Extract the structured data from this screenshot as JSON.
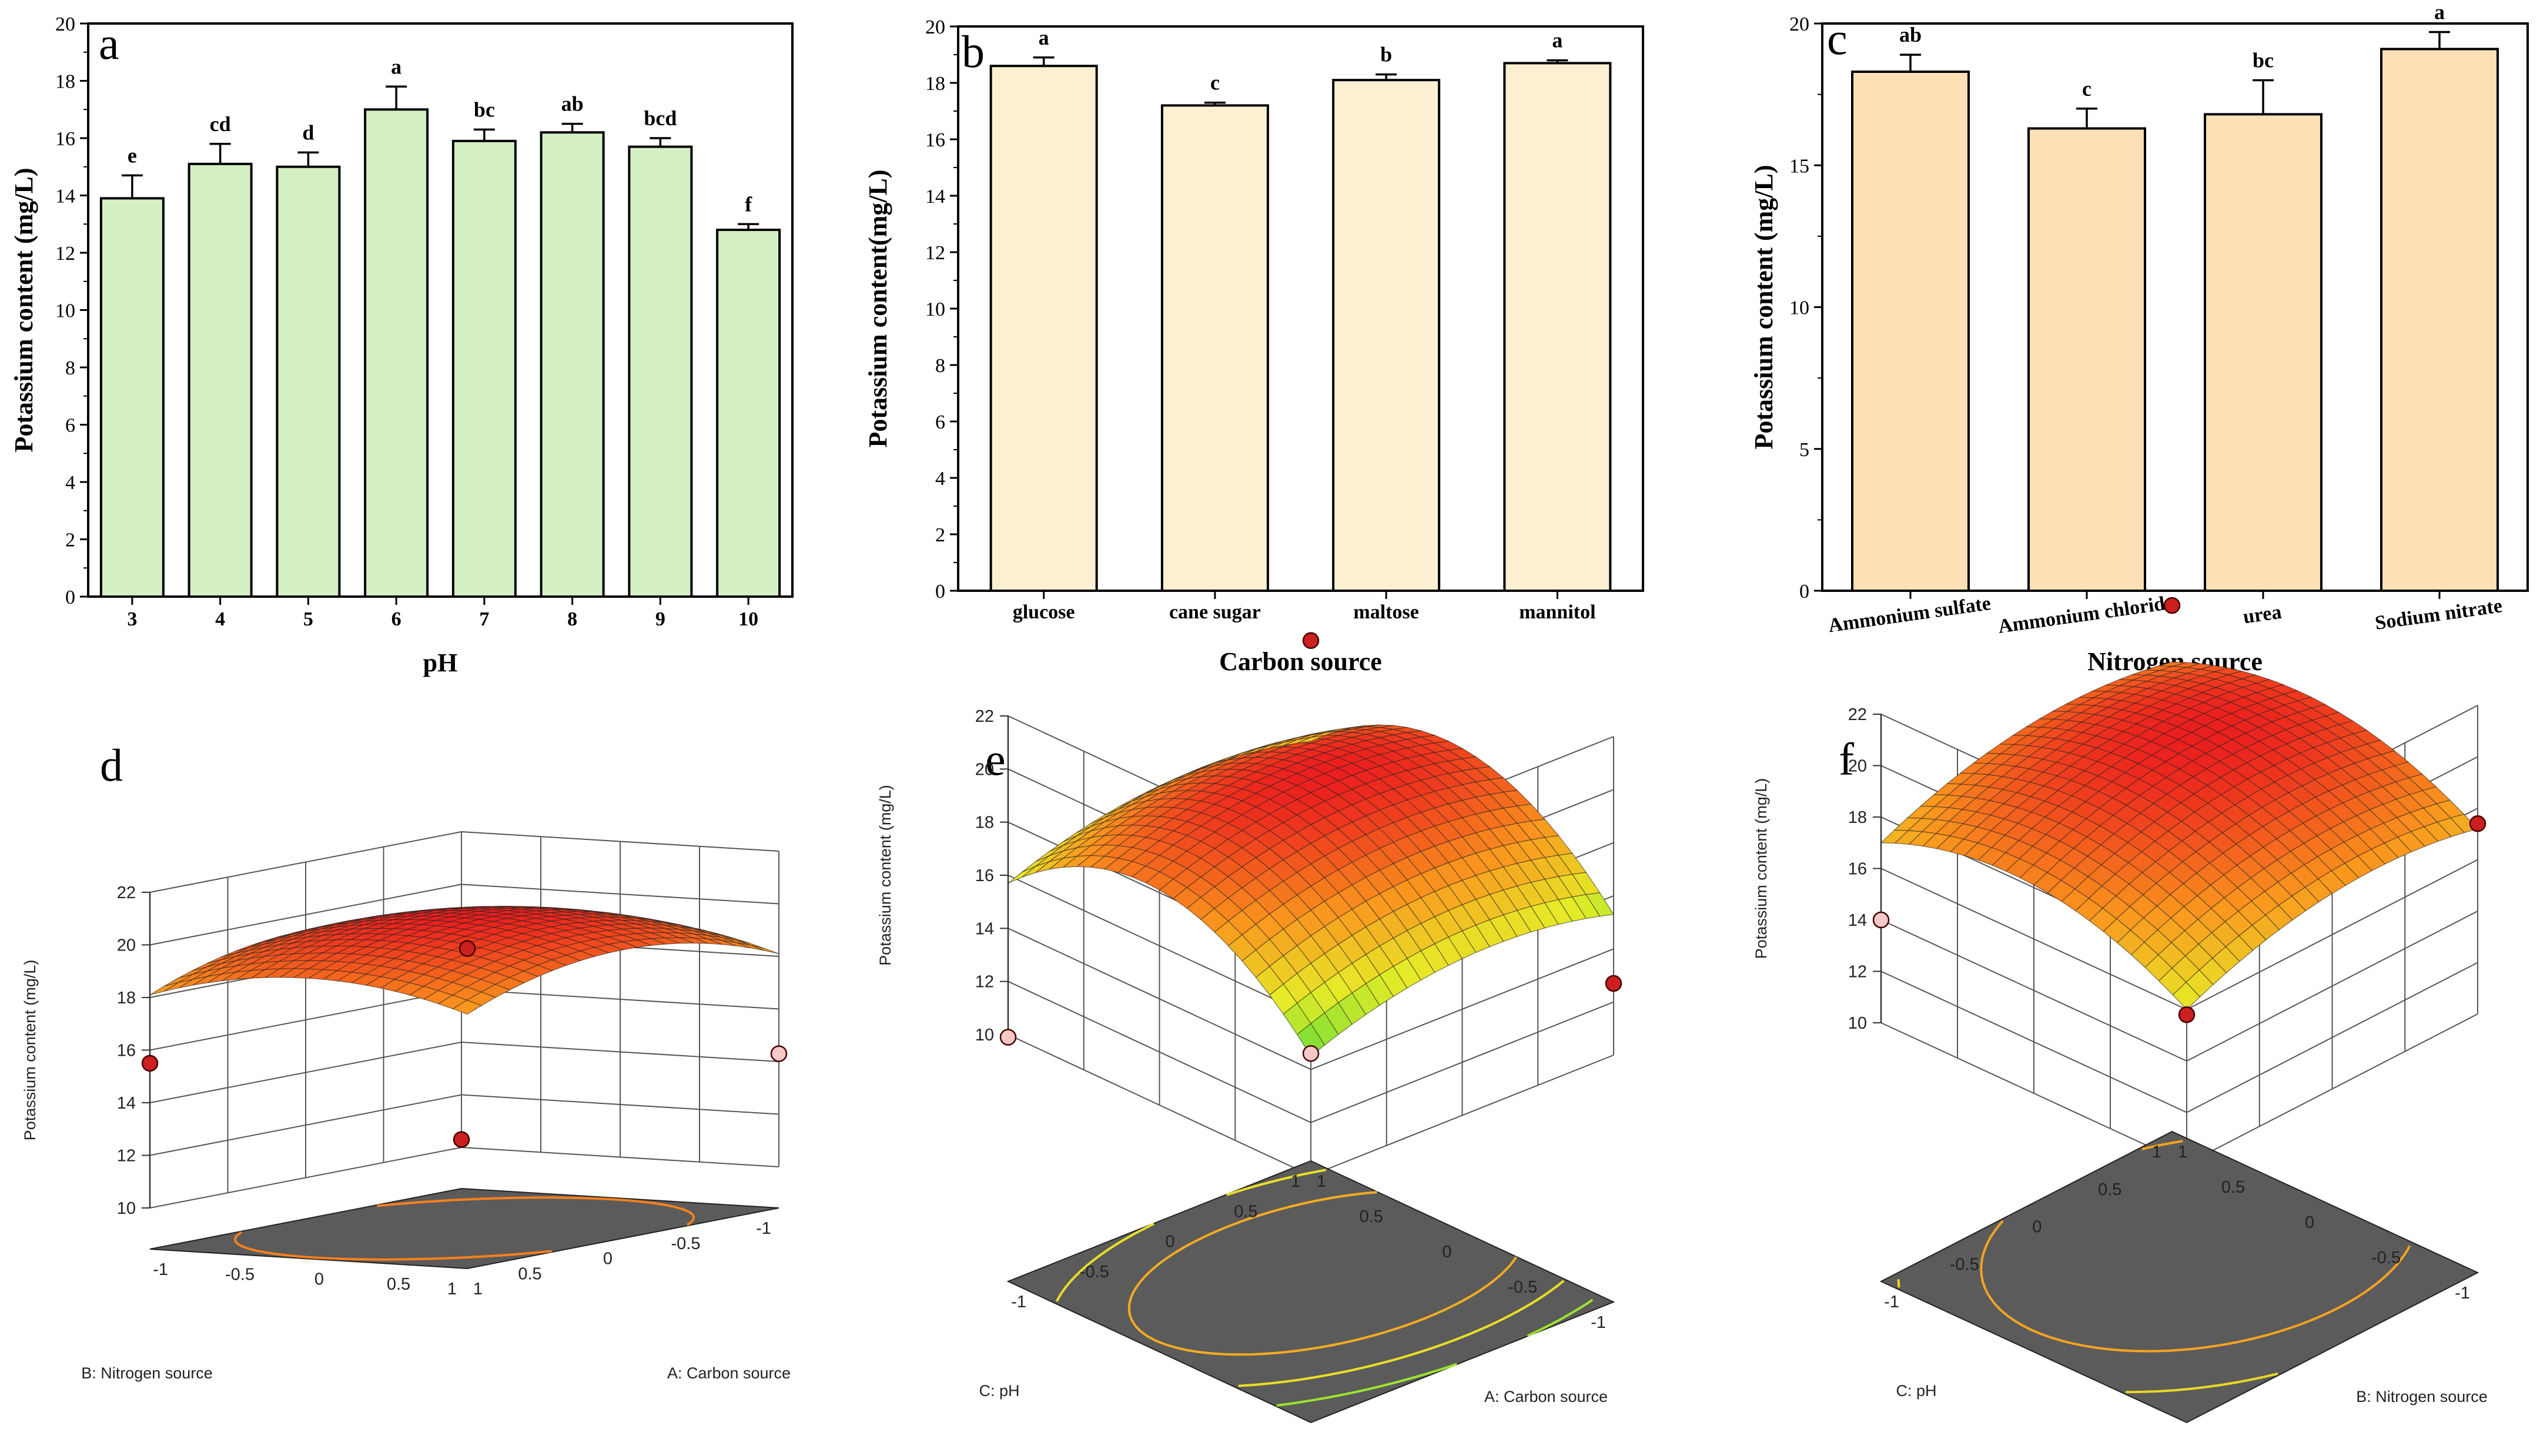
{
  "chart_data": [
    {
      "panel": "a",
      "type": "bar",
      "categories": [
        "3",
        "4",
        "5",
        "6",
        "7",
        "8",
        "9",
        "10"
      ],
      "values": [
        13.9,
        15.1,
        15.0,
        17.0,
        15.9,
        16.2,
        15.7,
        12.8
      ],
      "errors": [
        0.8,
        0.7,
        0.5,
        0.8,
        0.4,
        0.3,
        0.3,
        0.2
      ],
      "letters": [
        "e",
        "cd",
        "d",
        "a",
        "bc",
        "ab",
        "bcd",
        "f"
      ],
      "xlabel": "pH",
      "ylabel": "Potassium content (mg/L)",
      "ylim": [
        0,
        20
      ],
      "yticks": [
        0,
        2,
        4,
        6,
        8,
        10,
        12,
        14,
        16,
        18,
        20
      ],
      "color": "#d5efc4"
    },
    {
      "panel": "b",
      "type": "bar",
      "categories": [
        "glucose",
        "cane sugar",
        "maltose",
        "mannitol"
      ],
      "values": [
        18.6,
        17.2,
        18.1,
        18.7
      ],
      "errors": [
        0.3,
        0.1,
        0.2,
        0.1
      ],
      "letters": [
        "a",
        "c",
        "b",
        "a"
      ],
      "xlabel": "Carbon source",
      "ylabel": "Potassium content(mg/L)",
      "ylim": [
        0,
        20
      ],
      "yticks": [
        0,
        2,
        4,
        6,
        8,
        10,
        12,
        14,
        16,
        18,
        20
      ],
      "color": "#fdf0d2"
    },
    {
      "panel": "c",
      "type": "bar",
      "categories": [
        "Ammonium sulfate",
        "Ammonium chloride",
        "urea",
        "Sodium nitrate"
      ],
      "values": [
        18.3,
        16.3,
        16.8,
        19.1
      ],
      "errors": [
        0.6,
        0.7,
        1.2,
        0.6
      ],
      "letters": [
        "ab",
        "c",
        "bc",
        "a"
      ],
      "xlabel": "Nitrogen source",
      "ylabel": "Potassium content (mg/L)",
      "ylim": [
        0,
        20
      ],
      "yticks": [
        0,
        5,
        10,
        15,
        20
      ],
      "color": "#fde0b6"
    },
    {
      "panel": "d",
      "type": "surface",
      "zlabel": "Potassium content (mg/L)",
      "zticks": [
        10,
        12,
        14,
        16,
        18,
        20,
        22
      ],
      "xlabel": "A: Carbon source",
      "ylabel": "B: Nitrogen source",
      "xticks": [
        "-1",
        "-0.5",
        "0",
        "0.5",
        "1"
      ],
      "yticks": [
        "-1",
        "-0.5",
        "0",
        "0.5",
        "1"
      ],
      "model": {
        "c": 20.4,
        "a": -1.0,
        "b": -1.3,
        "ax": 0,
        "by": 0,
        "abx": 0,
        "peak": 0,
        "peakw": 0
      },
      "points": [
        [
          1,
          1,
          20.6,
          "#cc1f1f"
        ],
        [
          -1,
          -1,
          10.3,
          "#cc1f1f"
        ],
        [
          -1,
          1,
          15.5,
          "#cc1f1f"
        ],
        [
          1,
          -1,
          14.3,
          "#f6c8c8"
        ]
      ]
    },
    {
      "panel": "e",
      "type": "surface",
      "zlabel": "Potassium content (mg/L)",
      "zticks": [
        10,
        12,
        14,
        16,
        18,
        20,
        22
      ],
      "xlabel": "A: Carbon source",
      "ylabel": "C: pH",
      "xticks": [
        "-1",
        "-0.5",
        "0",
        "0.5",
        "1"
      ],
      "yticks": [
        "-1",
        "-0.5",
        "0",
        "0.5",
        "1"
      ],
      "model": {
        "c": 19.5,
        "a": -1.0,
        "b": -3.0,
        "ax": 0.4,
        "by": 0.6,
        "abx": 0,
        "peak": 0,
        "peakw": 0
      },
      "points": [
        [
          1,
          1,
          20.3,
          "#cc1f1f"
        ],
        [
          -1,
          -1,
          14.6,
          "#f6c8c8"
        ],
        [
          -1,
          1,
          9.9,
          "#f6c8c8"
        ],
        [
          1,
          -1,
          12.7,
          "#cc1f1f"
        ]
      ]
    },
    {
      "panel": "f",
      "type": "surface",
      "zlabel": "Potassium content (mg/L)",
      "zticks": [
        10,
        12,
        14,
        16,
        18,
        20,
        22
      ],
      "xlabel": "B: Nitrogen source",
      "ylabel": "C: pH",
      "xticks": [
        "-1",
        "-0.5",
        "0",
        "0.5",
        "1"
      ],
      "yticks": [
        "-1",
        "-0.5",
        "0",
        "0.5",
        "1"
      ],
      "model": {
        "c": 19.7,
        "a": -1.0,
        "b": -1.6,
        "ax": 0.6,
        "by": 0.5,
        "abx": 0,
        "peak": 0,
        "peakw": 0
      },
      "points": [
        [
          1,
          1,
          20.4,
          "#cc1f1f"
        ],
        [
          -1,
          -1,
          15.8,
          "#cc1f1f"
        ],
        [
          -1,
          1,
          14.0,
          "#f6c8c8"
        ],
        [
          1,
          -1,
          17.4,
          "#cc1f1f"
        ]
      ]
    }
  ]
}
